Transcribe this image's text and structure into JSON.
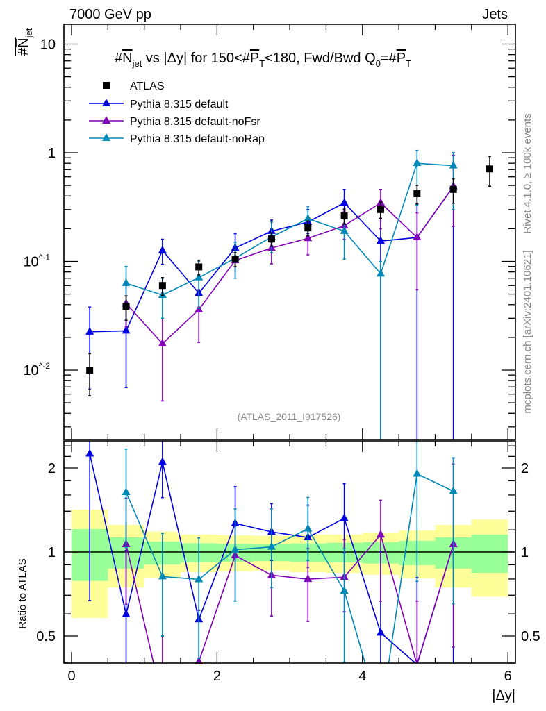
{
  "header": {
    "left": "7000 GeV pp",
    "right": "Jets",
    "side_top": "Rivet 4.1.0, ≥ 100k events",
    "side_bottom": "mcplots.cern.ch [arXiv:2401.10621]",
    "watermark": "(ATLAS_2011_I917526)"
  },
  "chart_data": {
    "type": "line",
    "title": "#N̅jet vs |Δy| for 150<#P̅T<180, Fwd/Bwd Q0=#P̅T",
    "title_parts": {
      "a": "#",
      "b": "N",
      "b_sub": "jet",
      "c": " vs |Δy| for 150<#",
      "d": "P",
      "d_sub": "T",
      "e": "<180, Fwd/Bwd Q",
      "e_sub": "0",
      "f": "=#",
      "g": "P",
      "g_sub": "T"
    },
    "ylabel": "#N̅jet",
    "ylabel_parts": {
      "main": "#N",
      "sub": "jet"
    },
    "ratio_ylabel": "Ratio to ATLAS",
    "xlabel": "|Δy|",
    "xlim": [
      -0.1,
      6.1
    ],
    "ylim": [
      0.00227,
      15
    ],
    "yscale": "log",
    "ratio_ylim": [
      0.4,
      2.48
    ],
    "x_ticks": [
      "0",
      "2",
      "4",
      "6"
    ],
    "y_ticks": [
      "10",
      "1",
      "10^-1",
      "10^-2"
    ],
    "ratio_ticks": [
      "2",
      "1",
      "0.5"
    ],
    "legend_position": "top-left",
    "x": [
      0.25,
      0.75,
      1.25,
      1.75,
      2.25,
      2.75,
      3.25,
      3.75,
      4.25,
      4.75,
      5.25,
      5.75
    ],
    "bin_edges": [
      0,
      0.5,
      1,
      1.5,
      2,
      2.5,
      3,
      3.5,
      4,
      4.5,
      5,
      5.5,
      6
    ],
    "reference": {
      "name": "ATLAS",
      "color": "#000000",
      "values": [
        0.01,
        0.0385,
        0.06,
        0.089,
        0.105,
        0.161,
        0.204,
        0.262,
        0.3,
        0.42,
        0.46,
        0.71
      ],
      "band_total": [
        [
          0.58,
          1.418
        ],
        [
          0.746,
          1.25
        ],
        [
          0.81,
          1.183
        ],
        [
          0.846,
          1.154
        ],
        [
          0.853,
          1.147
        ],
        [
          0.858,
          1.143
        ],
        [
          0.846,
          1.154
        ],
        [
          0.842,
          1.154
        ],
        [
          0.829,
          1.169
        ],
        [
          0.806,
          1.194
        ],
        [
          0.746,
          1.25
        ],
        [
          0.692,
          1.307
        ]
      ],
      "band_stat": [
        [
          0.788,
          1.208
        ],
        [
          0.872,
          1.128
        ],
        [
          0.902,
          1.09
        ],
        [
          0.918,
          1.075
        ],
        [
          0.923,
          1.069
        ],
        [
          0.927,
          1.065
        ],
        [
          0.921,
          1.073
        ],
        [
          0.918,
          1.079
        ],
        [
          0.909,
          1.085
        ],
        [
          0.897,
          1.096
        ],
        [
          0.872,
          1.128
        ],
        [
          0.842,
          1.154
        ]
      ]
    },
    "series": [
      {
        "name": "Pythia 8.315 default",
        "color": "#0000e0",
        "values": [
          0.0225,
          0.023,
          0.126,
          0.051,
          0.133,
          0.19,
          0.23,
          0.346,
          0.154,
          0.166,
          0.49,
          null
        ],
        "lo": [
          0.0067,
          0.0069,
          0.094,
          0.036,
          0.1,
          0.15,
          0.18,
          0.26,
          0,
          0,
          0,
          null
        ],
        "hi": [
          0.038,
          0.039,
          0.16,
          0.07,
          0.18,
          0.24,
          0.3,
          0.46,
          0.3,
          0.34,
          1.0,
          null
        ]
      },
      {
        "name": "Pythia 8.315 default-noFsr",
        "color": "#8000b8",
        "values": [
          null,
          0.041,
          0.0175,
          0.036,
          0.102,
          0.133,
          0.163,
          0.213,
          0.346,
          0.166,
          0.49,
          null
        ],
        "lo": [
          null,
          0.025,
          0.0052,
          0.018,
          0.07,
          0.095,
          0.115,
          0.16,
          0.2,
          0.055,
          0.21,
          null
        ],
        "hi": [
          null,
          0.06,
          0.03,
          0.055,
          0.13,
          0.17,
          0.21,
          0.29,
          0.46,
          0.28,
          0.95,
          null
        ]
      },
      {
        "name": "Pythia 8.315 default-noRap",
        "color": "#0088b8",
        "values": [
          null,
          0.063,
          0.049,
          0.071,
          0.107,
          0.168,
          0.247,
          0.19,
          0.077,
          0.8,
          0.76,
          null
        ],
        "lo": [
          null,
          0.04,
          0.03,
          0.037,
          0.07,
          0.12,
          0.19,
          0.105,
          0,
          0.33,
          0.3,
          null
        ],
        "hi": [
          null,
          0.09,
          0.07,
          0.1,
          0.15,
          0.23,
          0.32,
          0.27,
          0.1,
          1.05,
          1.0,
          null
        ]
      }
    ],
    "colors": {
      "band_total": "#ffff99",
      "band_stat": "#99ff99",
      "watermark": "#888888"
    }
  }
}
